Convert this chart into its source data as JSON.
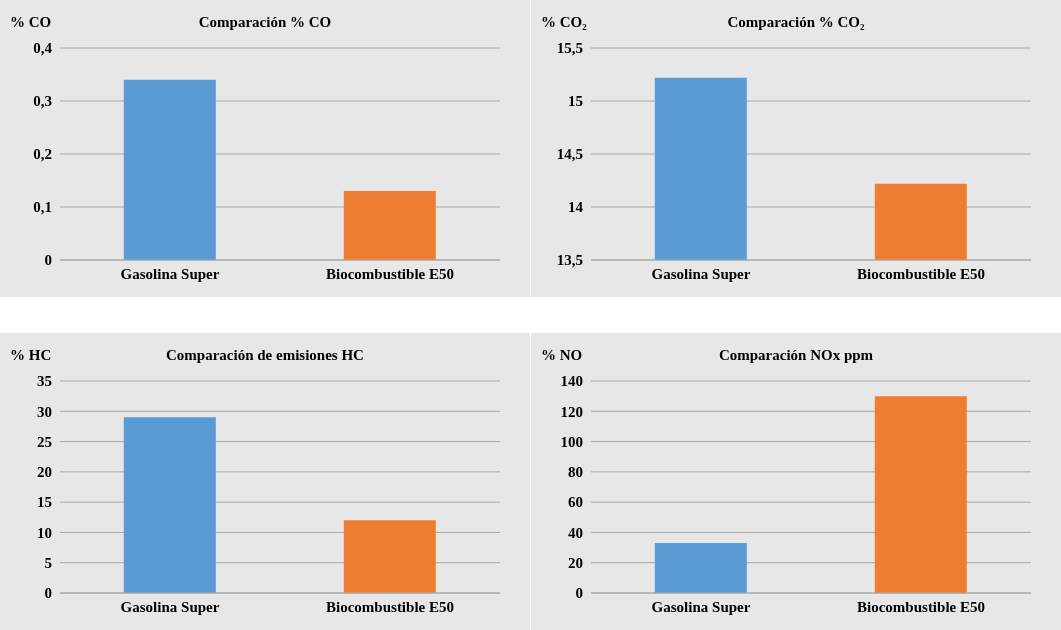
{
  "chart_data": [
    {
      "type": "bar",
      "title": "Comparación % CO",
      "ylabel": "% CO",
      "categories": [
        "Gasolina Super",
        "Biocombustible E50"
      ],
      "values": [
        0.34,
        0.13
      ],
      "colors": [
        "#5b9bd5",
        "#ed7d31"
      ],
      "ylim": [
        0,
        0.4
      ],
      "yticks": [
        0,
        {
          "value": 0.1,
          "label": "0,1"
        },
        {
          "value": 0.2,
          "label": "0,2"
        },
        {
          "value": 0.3,
          "label": "0,3"
        },
        {
          "value": 0.4,
          "label": "0,4"
        }
      ],
      "grid": "y",
      "legend": false
    },
    {
      "type": "bar",
      "title": "Comparación % CO₂",
      "ylabel": "% CO₂",
      "categories": [
        "Gasolina Super",
        "Biocombustible E50"
      ],
      "values": [
        15.22,
        14.22
      ],
      "colors": [
        "#5b9bd5",
        "#ed7d31"
      ],
      "ylim": [
        13.5,
        15.5
      ],
      "yticks": [
        {
          "value": 13.5,
          "label": "13,5"
        },
        14,
        {
          "value": 14.5,
          "label": "14,5"
        },
        15,
        {
          "value": 15.5,
          "label": "15,5"
        }
      ],
      "grid": "y",
      "legend": false
    },
    {
      "type": "bar",
      "title": "Comparación de emisiones HC",
      "ylabel": "% HC",
      "categories": [
        "Gasolina Super",
        "Biocombustible E50"
      ],
      "values": [
        29,
        12
      ],
      "colors": [
        "#5b9bd5",
        "#ed7d31"
      ],
      "ylim": [
        0,
        35
      ],
      "yticks": [
        0,
        5,
        10,
        15,
        20,
        25,
        30,
        35
      ],
      "grid": "y",
      "legend": false
    },
    {
      "type": "bar",
      "title": "Comparación NOx ppm",
      "ylabel": "% NO",
      "categories": [
        "Gasolina Super",
        "Biocombustible E50"
      ],
      "values": [
        33,
        130
      ],
      "colors": [
        "#5b9bd5",
        "#ed7d31"
      ],
      "ylim": [
        0,
        140
      ],
      "yticks": [
        0,
        20,
        40,
        60,
        80,
        100,
        120,
        140
      ],
      "grid": "y",
      "legend": false
    }
  ]
}
